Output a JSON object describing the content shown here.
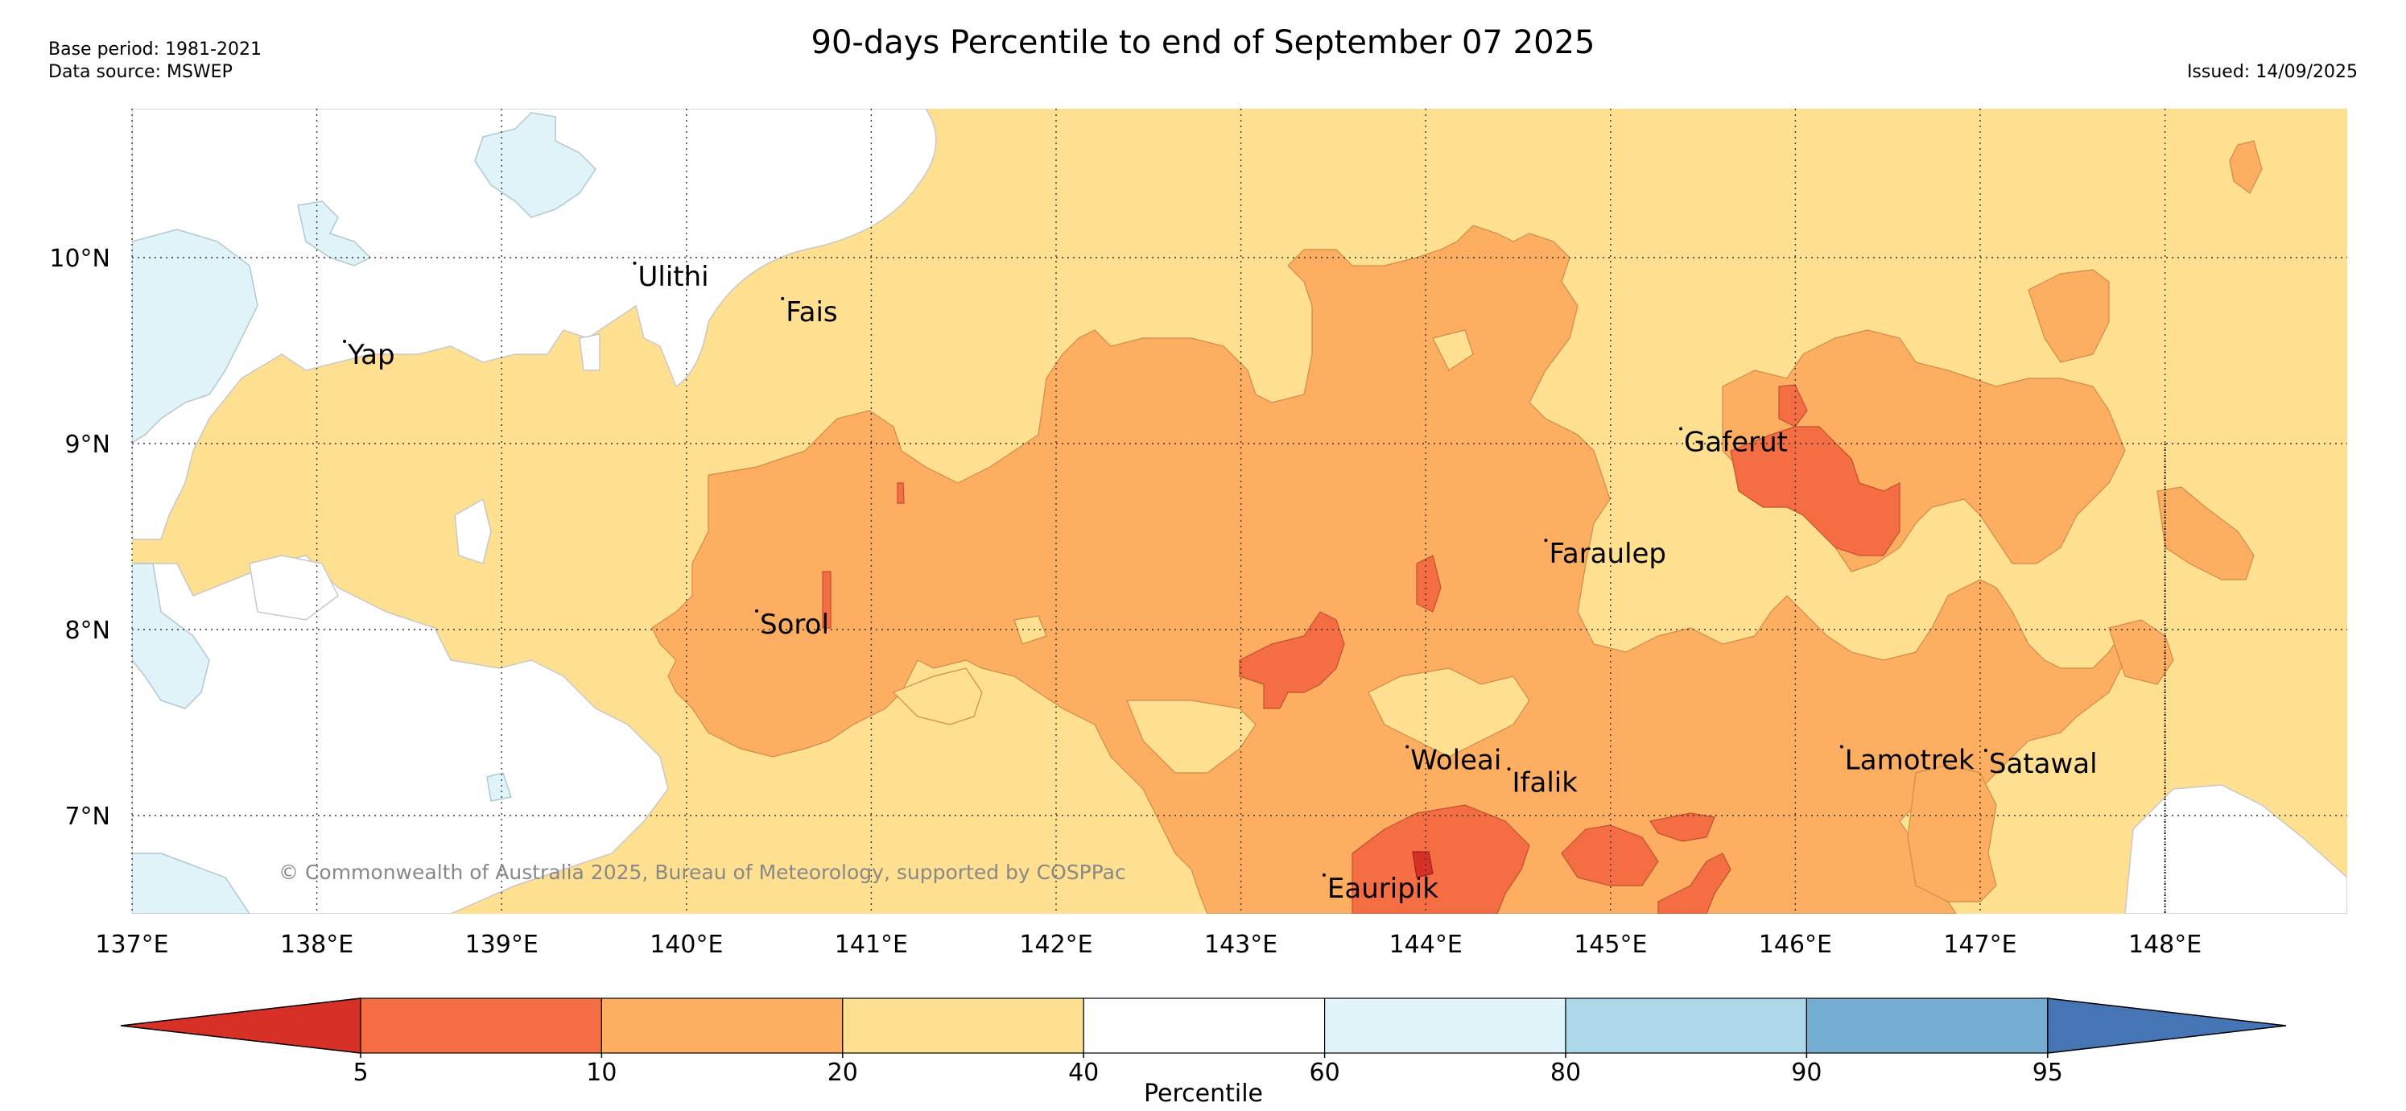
{
  "title": "90-days Percentile to end of September 07 2025",
  "meta_left": [
    "Base period: 1981-2021",
    "Data source: MSWEP"
  ],
  "meta_right": "Issued: 14/09/2025",
  "credit": "© Commonwealth of Australia 2025, Bureau of Meteorology, supported by COSPPac",
  "lon_ticks": [
    "137°E",
    "138°E",
    "139°E",
    "140°E",
    "141°E",
    "142°E",
    "143°E",
    "144°E",
    "145°E",
    "146°E",
    "147°E",
    "148°E"
  ],
  "lat_ticks": [
    "10°N",
    "9°N",
    "8°N",
    "7°N"
  ],
  "islands": [
    {
      "name": "Ulithi",
      "lon": 139.72,
      "lat": 9.97
    },
    {
      "name": "Fais",
      "lon": 140.52,
      "lat": 9.78
    },
    {
      "name": "Yap",
      "lon": 138.15,
      "lat": 9.55
    },
    {
      "name": "Gaferut",
      "lon": 145.38,
      "lat": 9.08
    },
    {
      "name": "Faraulep",
      "lon": 144.65,
      "lat": 8.48
    },
    {
      "name": "Sorol",
      "lon": 140.38,
      "lat": 8.1
    },
    {
      "name": "Woleai",
      "lon": 143.9,
      "lat": 7.37
    },
    {
      "name": "Lamotrek",
      "lon": 146.25,
      "lat": 7.37
    },
    {
      "name": "Satawal",
      "lon": 147.03,
      "lat": 7.35
    },
    {
      "name": "Ifalik",
      "lon": 144.45,
      "lat": 7.25
    },
    {
      "name": "Eauripik",
      "lon": 143.45,
      "lat": 6.68
    }
  ],
  "colorbar": {
    "title": "Percentile",
    "ticks": [
      "5",
      "10",
      "20",
      "40",
      "60",
      "80",
      "90",
      "95"
    ],
    "colors": [
      "#d73027",
      "#f46d43",
      "#fdae61",
      "#fee090",
      "#ffffff",
      "#e0f3f8",
      "#abd9e9",
      "#74add1",
      "#4575b4"
    ]
  }
}
